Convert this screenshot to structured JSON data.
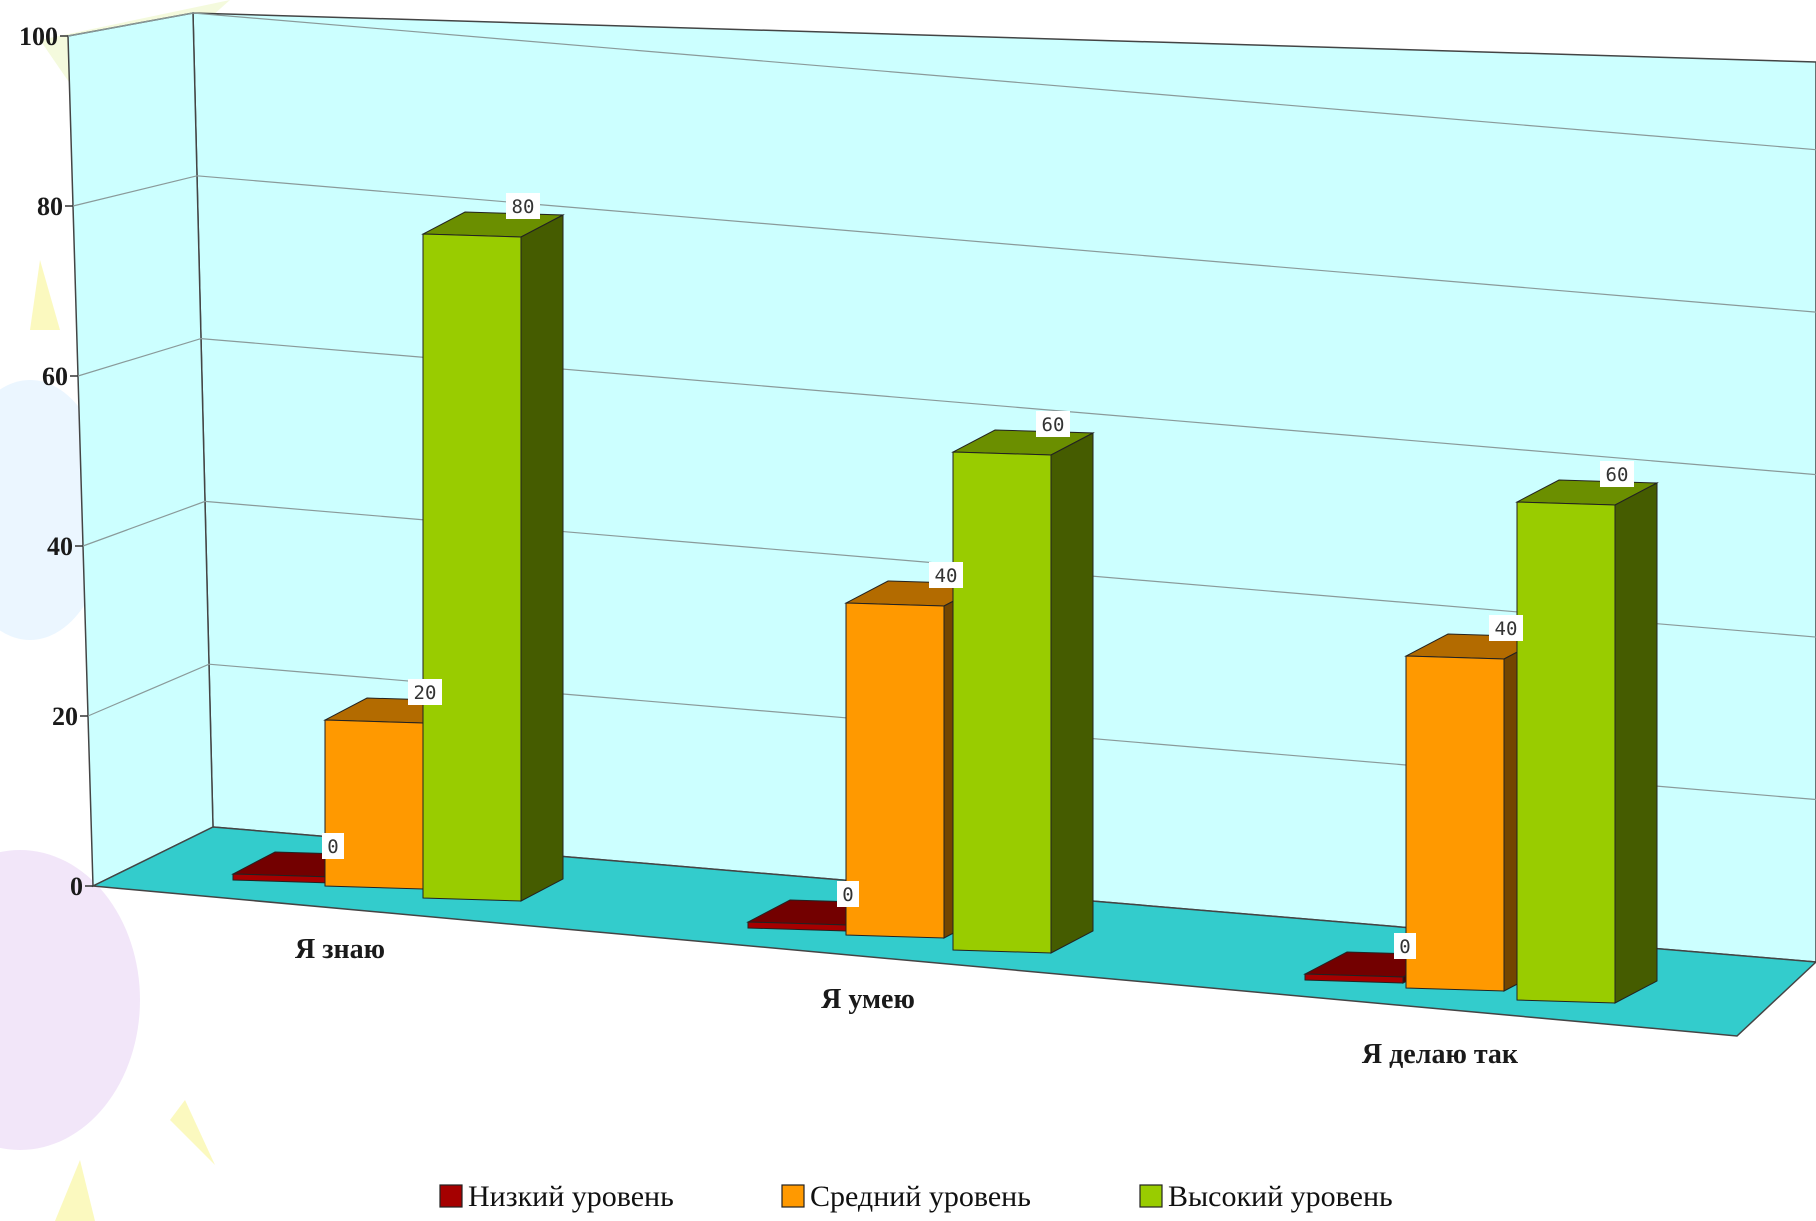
{
  "chart_data": {
    "type": "bar",
    "title": "",
    "xlabel": "",
    "ylabel": "",
    "categories": [
      "Я знаю",
      "Я умею",
      "Я делаю так"
    ],
    "series": [
      {
        "name": "Низкий уровень",
        "values": [
          0,
          0,
          0
        ],
        "color": "#a50000"
      },
      {
        "name": "Средний уровень",
        "values": [
          20,
          40,
          40
        ],
        "color": "#ff9900"
      },
      {
        "name": "Высокий уровень",
        "values": [
          80,
          60,
          60
        ],
        "color": "#99cc00"
      }
    ],
    "ylim": [
      0,
      100
    ],
    "yticks": [
      0,
      20,
      40,
      60,
      80,
      100
    ],
    "grid": true,
    "legend": "bottom",
    "data_labels": true,
    "style": "3d-column",
    "colors": {
      "back_wall": "#ccffff",
      "floor": "#33cccc"
    }
  }
}
